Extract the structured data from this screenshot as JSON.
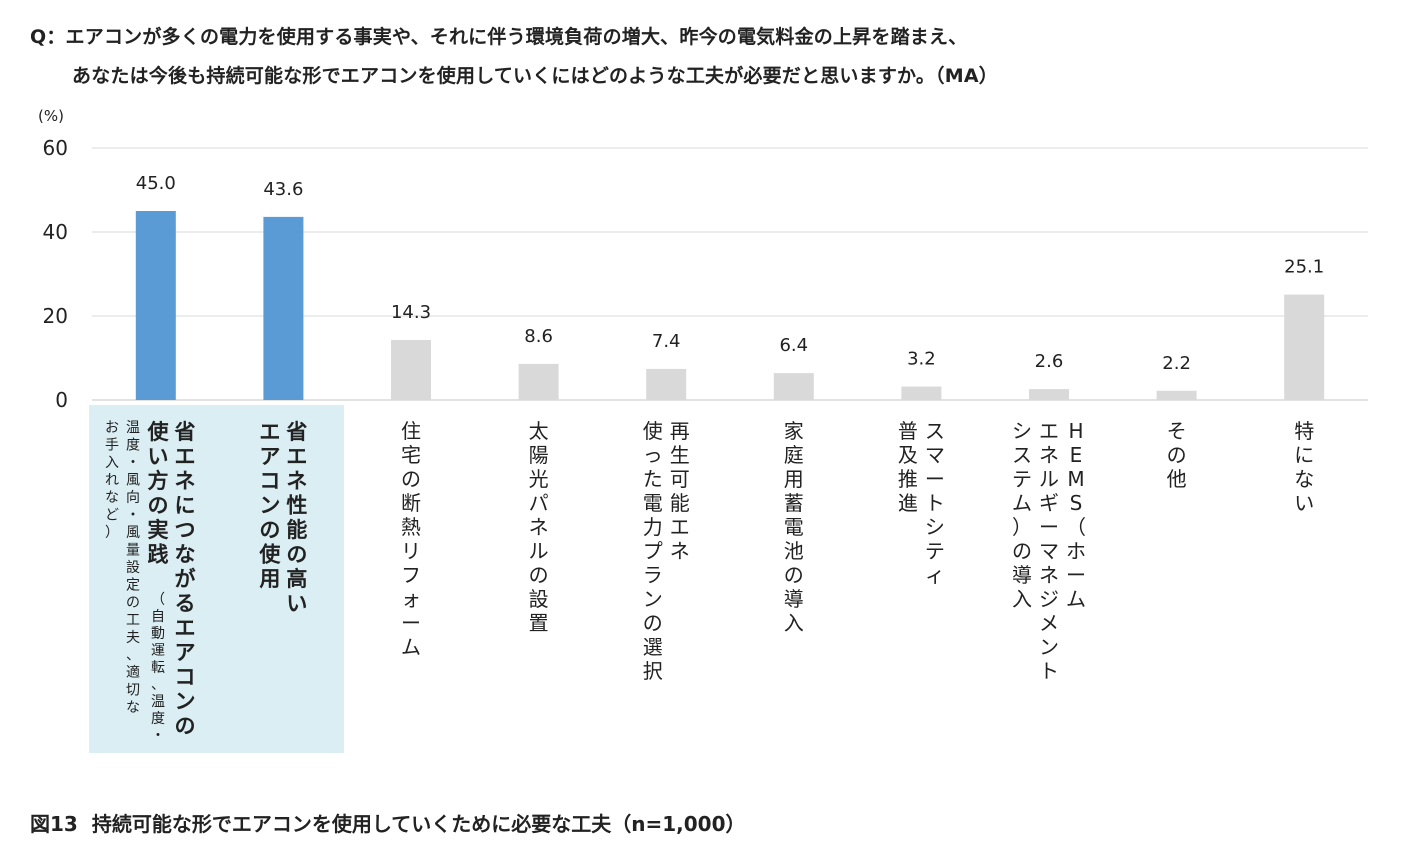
{
  "question": {
    "line1": "Q：エアコンが多くの電力を使用する事実や、それに伴う環境負荷の増大、昨今の電気料金の上昇を踏まえ、",
    "line2": "あなたは今後も持続可能な形でエアコンを使用していくにはどのような工夫が必要だと思いますか。（MA）"
  },
  "caption": {
    "figure_no": "図13",
    "text": "持続可能な形でエアコンを使用していくために必要な工夫（n=1,000）"
  },
  "colors": {
    "highlight_bar": "#5b9bd5",
    "other_bar": "#d9d9d9",
    "highlight_band": "#daeef3",
    "grid": "#d9d9d9",
    "text": "#222222"
  },
  "chart_data": {
    "type": "bar",
    "ylabel": "(%)",
    "ylim": [
      0,
      60
    ],
    "yticks": [
      0,
      20,
      40,
      60
    ],
    "grid": true,
    "categories": [
      "省エネにつながるエアコンの使い方の実践",
      "省エネ性能の高いエアコンの使用",
      "住宅の断熱リフォーム",
      "太陽光パネルの設置",
      "再生可能エネ使った電力プランの選択",
      "家庭用蓄電池の導入",
      "スマートシティ普及推進",
      "HEMS（ホームエネルギーマネジメントシステム）の導入",
      "その他",
      "特にない"
    ],
    "category_lines": [
      [
        "省エネにつながるエアコンの",
        "使い方の実践",
        "温度・風向・風量設定の工夫、適切な",
        "お手入れなど）"
      ],
      [
        "省エネ性能の高い",
        "エアコンの使用"
      ],
      [
        "住宅の断熱リフォーム"
      ],
      [
        "太陽光パネルの設置"
      ],
      [
        "再生可能エネ",
        "使った電力プランの選択"
      ],
      [
        "家庭用蓄電池の導入"
      ],
      [
        "スマートシティ",
        "普及推進"
      ],
      [
        "HEMS（ホーム",
        "エネルギーマネジメント",
        "システム）の導入"
      ],
      [
        "その他"
      ],
      [
        "特にない"
      ]
    ],
    "category_note_inline": "（自動運転、温度・",
    "values": [
      45.0,
      43.6,
      14.3,
      8.6,
      7.4,
      6.4,
      3.2,
      2.6,
      2.2,
      25.1
    ],
    "value_labels": [
      "45.0",
      "43.6",
      "14.3",
      "8.6",
      "7.4",
      "6.4",
      "3.2",
      "2.6",
      "2.2",
      "25.1"
    ],
    "highlighted": [
      true,
      true,
      false,
      false,
      false,
      false,
      false,
      false,
      false,
      false
    ]
  }
}
